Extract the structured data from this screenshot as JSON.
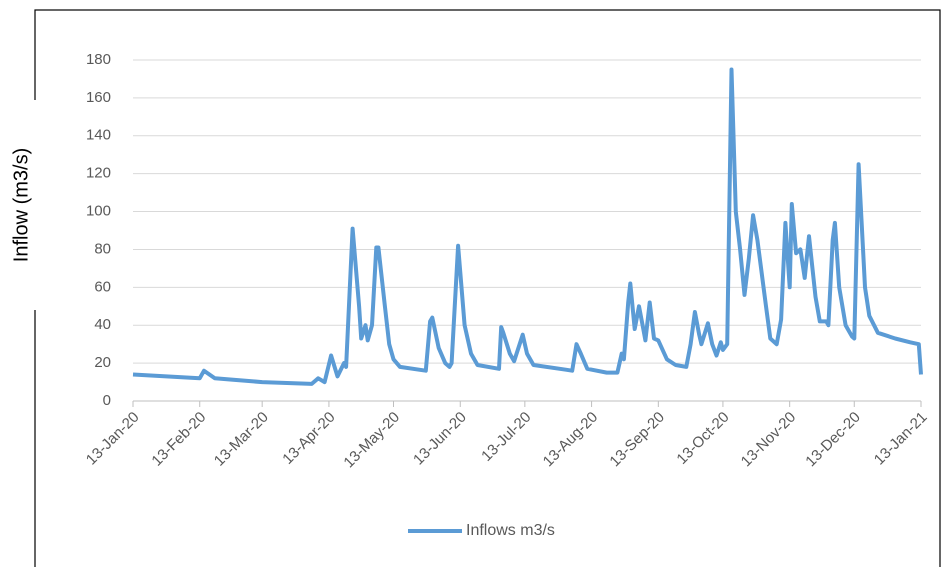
{
  "chart_data": {
    "type": "line",
    "y_label": "Inflow (m3/s)",
    "x": [
      "2020-01-13",
      "2020-02-13",
      "2020-02-15",
      "2020-02-20",
      "2020-03-13",
      "2020-04-05",
      "2020-04-08",
      "2020-04-11",
      "2020-04-14",
      "2020-04-17",
      "2020-04-20",
      "2020-04-21",
      "2020-04-24",
      "2020-04-27",
      "2020-04-28",
      "2020-04-30",
      "2020-05-01",
      "2020-05-03",
      "2020-05-05",
      "2020-05-06",
      "2020-05-09",
      "2020-05-11",
      "2020-05-13",
      "2020-05-16",
      "2020-05-28",
      "2020-05-30",
      "2020-05-31",
      "2020-06-03",
      "2020-06-06",
      "2020-06-08",
      "2020-06-09",
      "2020-06-12",
      "2020-06-15",
      "2020-06-18",
      "2020-06-21",
      "2020-07-01",
      "2020-07-02",
      "2020-07-03",
      "2020-07-06",
      "2020-07-08",
      "2020-07-12",
      "2020-07-14",
      "2020-07-17",
      "2020-08-01",
      "2020-08-04",
      "2020-08-06",
      "2020-08-08",
      "2020-08-11",
      "2020-08-20",
      "2020-08-25",
      "2020-08-27",
      "2020-08-28",
      "2020-08-30",
      "2020-08-31",
      "2020-09-02",
      "2020-09-04",
      "2020-09-06",
      "2020-09-07",
      "2020-09-09",
      "2020-09-11",
      "2020-09-13",
      "2020-09-17",
      "2020-09-21",
      "2020-09-26",
      "2020-09-28",
      "2020-09-30",
      "2020-10-02",
      "2020-10-03",
      "2020-10-06",
      "2020-10-08",
      "2020-10-10",
      "2020-10-12",
      "2020-10-13",
      "2020-10-15",
      "2020-10-17",
      "2020-10-19",
      "2020-10-21",
      "2020-10-23",
      "2020-10-25",
      "2020-10-27",
      "2020-10-29",
      "2020-11-02",
      "2020-11-04",
      "2020-11-07",
      "2020-11-09",
      "2020-11-11",
      "2020-11-13",
      "2020-11-14",
      "2020-11-16",
      "2020-11-18",
      "2020-11-20",
      "2020-11-22",
      "2020-11-25",
      "2020-11-27",
      "2020-11-30",
      "2020-12-01",
      "2020-12-03",
      "2020-12-04",
      "2020-12-06",
      "2020-12-09",
      "2020-12-12",
      "2020-12-13",
      "2020-12-15",
      "2020-12-18",
      "2020-12-20",
      "2020-12-24",
      "2021-01-01",
      "2021-01-08",
      "2021-01-12",
      "2021-01-13"
    ],
    "series": [
      {
        "name": "Inflows m3/s",
        "color": "#5b9bd5",
        "values": [
          14,
          12,
          16,
          12,
          10,
          9,
          12,
          10,
          24,
          13,
          20,
          18,
          91,
          50,
          33,
          40,
          32,
          40,
          81,
          81,
          50,
          30,
          22,
          18,
          16,
          42,
          44,
          28,
          20,
          18,
          20,
          82,
          40,
          25,
          19,
          17,
          39,
          36,
          25,
          21,
          35,
          25,
          19,
          16.5,
          16,
          30,
          25,
          17,
          15,
          15,
          25,
          22,
          52,
          62,
          38,
          50,
          38,
          32,
          52,
          33,
          32,
          22,
          19,
          18,
          30,
          47,
          35,
          30,
          41,
          30,
          24,
          31,
          27,
          30,
          175,
          100,
          80,
          56,
          75,
          98,
          85,
          50,
          33,
          30,
          43,
          94,
          60,
          104,
          78,
          80,
          65,
          87,
          55,
          42,
          42,
          40,
          85,
          94,
          60,
          40,
          34,
          33,
          125,
          60,
          45,
          36,
          33,
          31,
          30,
          14
        ]
      }
    ],
    "xlim": [
      "2020-01-13",
      "2021-01-13"
    ],
    "xticks": [
      {
        "value": "2020-01-13",
        "label": "13-Jan-20"
      },
      {
        "value": "2020-02-13",
        "label": "13-Feb-20"
      },
      {
        "value": "2020-03-13",
        "label": "13-Mar-20"
      },
      {
        "value": "2020-04-13",
        "label": "13-Apr-20"
      },
      {
        "value": "2020-05-13",
        "label": "13-May-20"
      },
      {
        "value": "2020-06-13",
        "label": "13-Jun-20"
      },
      {
        "value": "2020-07-13",
        "label": "13-Jul-20"
      },
      {
        "value": "2020-08-13",
        "label": "13-Aug-20"
      },
      {
        "value": "2020-09-13",
        "label": "13-Sep-20"
      },
      {
        "value": "2020-10-13",
        "label": "13-Oct-20"
      },
      {
        "value": "2020-11-13",
        "label": "13-Nov-20"
      },
      {
        "value": "2020-12-13",
        "label": "13-Dec-20"
      },
      {
        "value": "2021-01-13",
        "label": "13-Jan-21"
      }
    ],
    "ylim": [
      0,
      180
    ],
    "yticks": [
      0,
      20,
      40,
      60,
      80,
      100,
      120,
      140,
      160,
      180
    ],
    "grid": true,
    "legend": "bottom"
  }
}
